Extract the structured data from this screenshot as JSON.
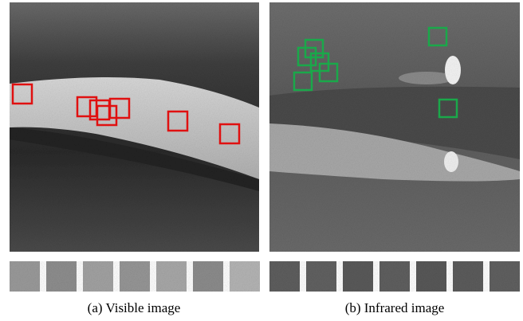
{
  "captions": {
    "visible": "(a) Visible image",
    "infrared": "(b) Infrared image"
  }
}
